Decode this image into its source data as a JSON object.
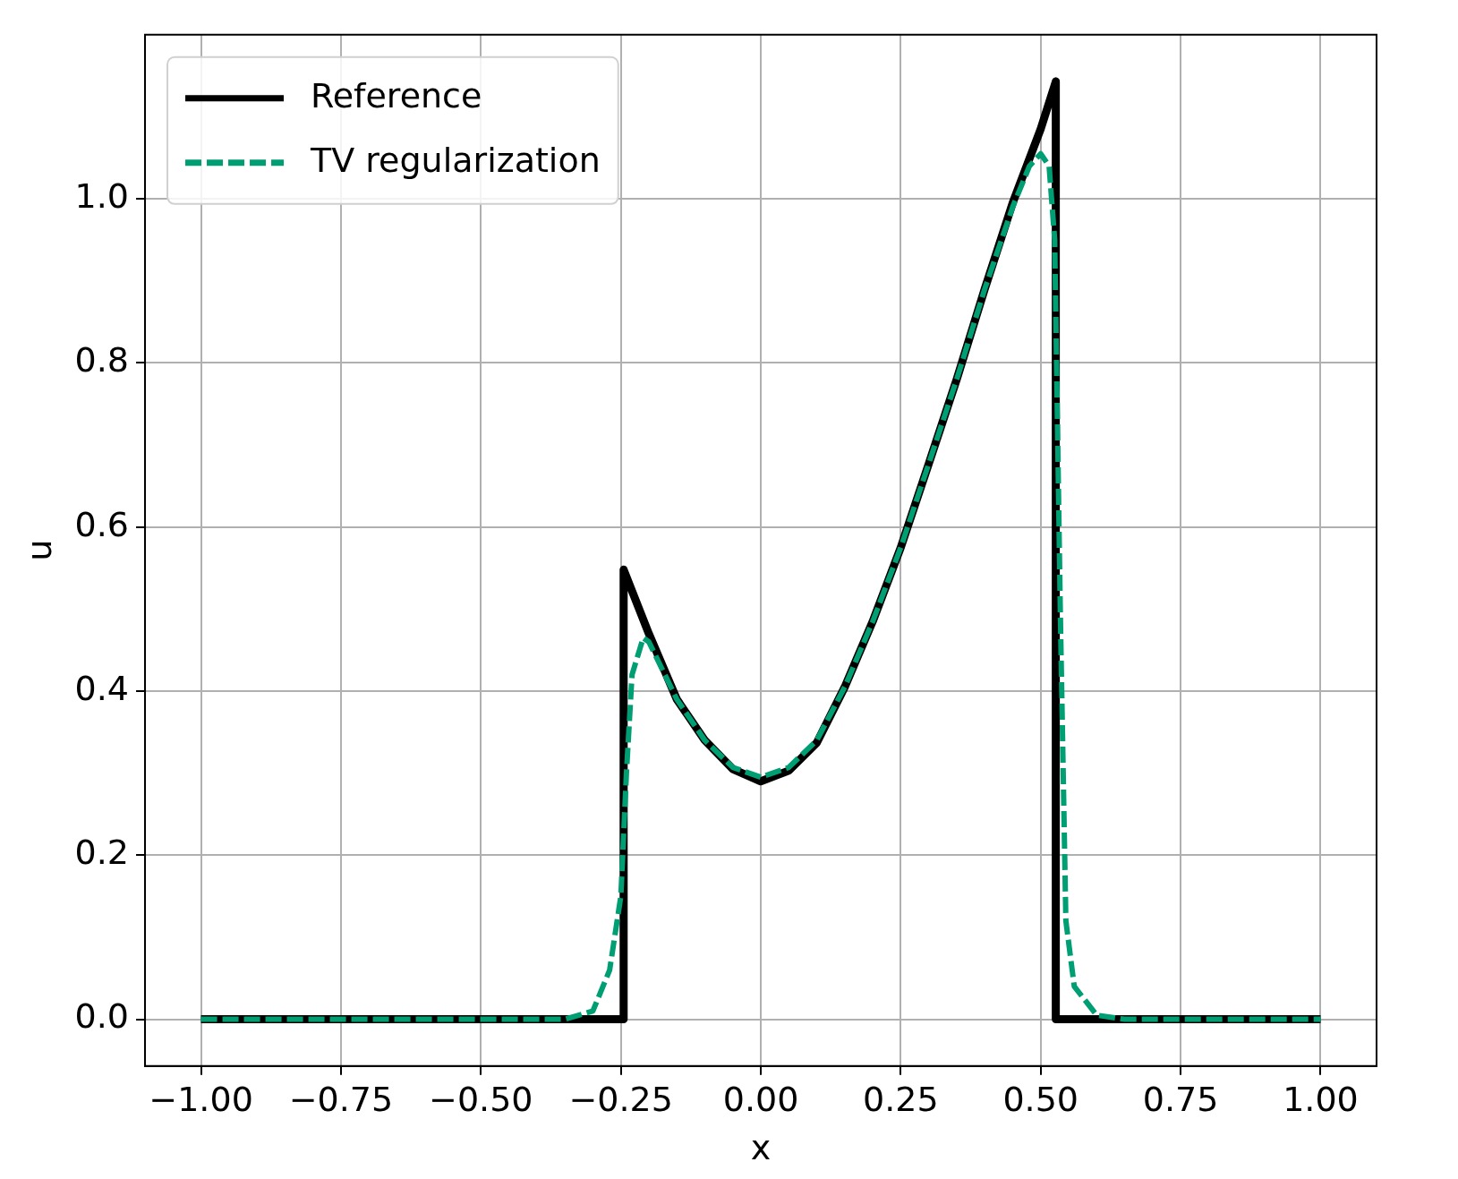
{
  "chart_data": {
    "type": "line",
    "xlabel": "x",
    "ylabel": "u",
    "xlim": [
      -1.1,
      1.1
    ],
    "ylim": [
      -0.057,
      1.2
    ],
    "xticks": [
      {
        "value": -1,
        "label": "−1.00"
      },
      {
        "value": -0.75,
        "label": "−0.75"
      },
      {
        "value": -0.5,
        "label": "−0.50"
      },
      {
        "value": -0.25,
        "label": "−0.25"
      },
      {
        "value": 0,
        "label": "0.00"
      },
      {
        "value": 0.25,
        "label": "0.25"
      },
      {
        "value": 0.5,
        "label": "0.50"
      },
      {
        "value": 0.75,
        "label": "0.75"
      },
      {
        "value": 1,
        "label": "1.00"
      }
    ],
    "yticks": [
      {
        "value": 0,
        "label": "0.0"
      },
      {
        "value": 0.2,
        "label": "0.2"
      },
      {
        "value": 0.4,
        "label": "0.4"
      },
      {
        "value": 0.6,
        "label": "0.6"
      },
      {
        "value": 0.8,
        "label": "0.8"
      },
      {
        "value": 1,
        "label": "1.0"
      }
    ],
    "grid": true,
    "legend": "top left",
    "marker": "none",
    "series": [
      {
        "name": "Reference",
        "color": "#000000",
        "line_style": "solid",
        "x": [
          -1,
          -0.245,
          -0.245,
          -0.2,
          -0.15,
          -0.1,
          -0.05,
          0,
          0.05,
          0.1,
          0.15,
          0.2,
          0.25,
          0.3,
          0.35,
          0.4,
          0.45,
          0.5,
          0.527,
          0.527,
          1
        ],
        "values": [
          0,
          0,
          0.548,
          0.47,
          0.39,
          0.34,
          0.305,
          0.29,
          0.303,
          0.337,
          0.405,
          0.485,
          0.575,
          0.677,
          0.78,
          0.89,
          0.995,
          1.085,
          1.143,
          0,
          0
        ]
      },
      {
        "name": "TV regularization",
        "color": "#009e73",
        "line_style": "dashed",
        "x": [
          -1,
          -0.35,
          -0.3,
          -0.27,
          -0.25,
          -0.24,
          -0.23,
          -0.21,
          -0.2,
          -0.15,
          -0.1,
          -0.05,
          0,
          0.05,
          0.1,
          0.15,
          0.2,
          0.25,
          0.3,
          0.35,
          0.4,
          0.45,
          0.48,
          0.5,
          0.515,
          0.525,
          0.535,
          0.545,
          0.56,
          0.6,
          0.65,
          1
        ],
        "values": [
          0,
          0,
          0.01,
          0.06,
          0.15,
          0.3,
          0.42,
          0.465,
          0.46,
          0.39,
          0.34,
          0.307,
          0.295,
          0.307,
          0.34,
          0.405,
          0.485,
          0.575,
          0.677,
          0.78,
          0.89,
          0.99,
          1.04,
          1.055,
          1.04,
          0.95,
          0.5,
          0.12,
          0.04,
          0.005,
          0,
          0
        ]
      }
    ]
  }
}
